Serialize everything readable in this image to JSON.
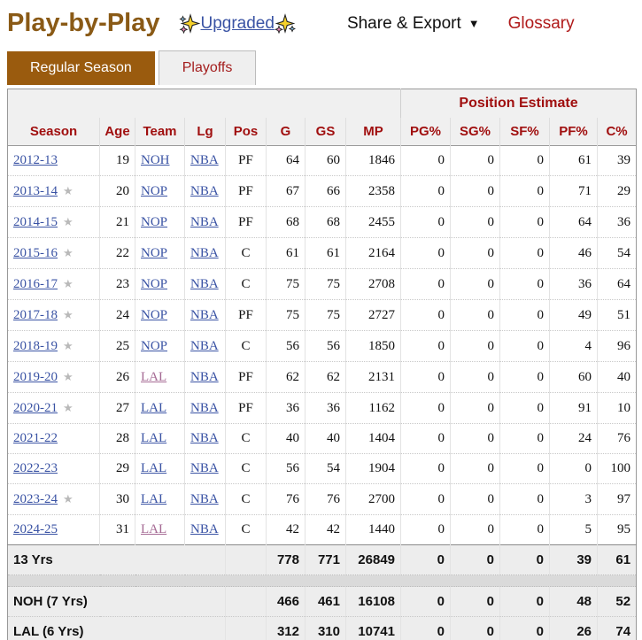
{
  "header": {
    "title": "Play-by-Play",
    "upgraded_label": "Upgraded",
    "share_export_label": "Share & Export",
    "caret_icon": "▼",
    "glossary_label": "Glossary"
  },
  "tabs": [
    {
      "label": "Regular Season",
      "active": true
    },
    {
      "label": "Playoffs",
      "active": false
    }
  ],
  "icons": {
    "all_star": "★",
    "sparkles": "sparkles-emoji"
  },
  "colors": {
    "title_brown": "#8a5a16",
    "tab_active_bg": "#9a5b0e",
    "header_red": "#a00f0f",
    "glossary_red": "#b01a1a",
    "link_blue": "#3a53a4",
    "link_visited": "#a56a94",
    "star_gray": "#b9b9b9",
    "thead_bg": "#f0f0f0",
    "sum_row_bg": "#ededed",
    "spacer_bg": "#dadada"
  },
  "table": {
    "group_header": "Position Estimate",
    "columns": [
      "Season",
      "Age",
      "Team",
      "Lg",
      "Pos",
      "G",
      "GS",
      "MP",
      "PG%",
      "SG%",
      "SF%",
      "PF%",
      "C%"
    ],
    "rows": [
      {
        "season": "2012-13",
        "star": false,
        "age": 19,
        "team": "NOH",
        "team_visited": false,
        "lg": "NBA",
        "pos": "PF",
        "g": 64,
        "gs": 60,
        "mp": 1846,
        "pg": 0,
        "sg": 0,
        "sf": 0,
        "pf": 61,
        "c": 39
      },
      {
        "season": "2013-14",
        "star": true,
        "age": 20,
        "team": "NOP",
        "team_visited": false,
        "lg": "NBA",
        "pos": "PF",
        "g": 67,
        "gs": 66,
        "mp": 2358,
        "pg": 0,
        "sg": 0,
        "sf": 0,
        "pf": 71,
        "c": 29
      },
      {
        "season": "2014-15",
        "star": true,
        "age": 21,
        "team": "NOP",
        "team_visited": false,
        "lg": "NBA",
        "pos": "PF",
        "g": 68,
        "gs": 68,
        "mp": 2455,
        "pg": 0,
        "sg": 0,
        "sf": 0,
        "pf": 64,
        "c": 36
      },
      {
        "season": "2015-16",
        "star": true,
        "age": 22,
        "team": "NOP",
        "team_visited": false,
        "lg": "NBA",
        "pos": "C",
        "g": 61,
        "gs": 61,
        "mp": 2164,
        "pg": 0,
        "sg": 0,
        "sf": 0,
        "pf": 46,
        "c": 54
      },
      {
        "season": "2016-17",
        "star": true,
        "age": 23,
        "team": "NOP",
        "team_visited": false,
        "lg": "NBA",
        "pos": "C",
        "g": 75,
        "gs": 75,
        "mp": 2708,
        "pg": 0,
        "sg": 0,
        "sf": 0,
        "pf": 36,
        "c": 64
      },
      {
        "season": "2017-18",
        "star": true,
        "age": 24,
        "team": "NOP",
        "team_visited": false,
        "lg": "NBA",
        "pos": "PF",
        "g": 75,
        "gs": 75,
        "mp": 2727,
        "pg": 0,
        "sg": 0,
        "sf": 0,
        "pf": 49,
        "c": 51
      },
      {
        "season": "2018-19",
        "star": true,
        "age": 25,
        "team": "NOP",
        "team_visited": false,
        "lg": "NBA",
        "pos": "C",
        "g": 56,
        "gs": 56,
        "mp": 1850,
        "pg": 0,
        "sg": 0,
        "sf": 0,
        "pf": 4,
        "c": 96
      },
      {
        "season": "2019-20",
        "star": true,
        "age": 26,
        "team": "LAL",
        "team_visited": true,
        "lg": "NBA",
        "pos": "PF",
        "g": 62,
        "gs": 62,
        "mp": 2131,
        "pg": 0,
        "sg": 0,
        "sf": 0,
        "pf": 60,
        "c": 40
      },
      {
        "season": "2020-21",
        "star": true,
        "age": 27,
        "team": "LAL",
        "team_visited": false,
        "lg": "NBA",
        "pos": "PF",
        "g": 36,
        "gs": 36,
        "mp": 1162,
        "pg": 0,
        "sg": 0,
        "sf": 0,
        "pf": 91,
        "c": 10
      },
      {
        "season": "2021-22",
        "star": false,
        "age": 28,
        "team": "LAL",
        "team_visited": false,
        "lg": "NBA",
        "pos": "C",
        "g": 40,
        "gs": 40,
        "mp": 1404,
        "pg": 0,
        "sg": 0,
        "sf": 0,
        "pf": 24,
        "c": 76
      },
      {
        "season": "2022-23",
        "star": false,
        "age": 29,
        "team": "LAL",
        "team_visited": false,
        "lg": "NBA",
        "pos": "C",
        "g": 56,
        "gs": 54,
        "mp": 1904,
        "pg": 0,
        "sg": 0,
        "sf": 0,
        "pf": 0,
        "c": 100
      },
      {
        "season": "2023-24",
        "star": true,
        "age": 30,
        "team": "LAL",
        "team_visited": false,
        "lg": "NBA",
        "pos": "C",
        "g": 76,
        "gs": 76,
        "mp": 2700,
        "pg": 0,
        "sg": 0,
        "sf": 0,
        "pf": 3,
        "c": 97
      },
      {
        "season": "2024-25",
        "star": false,
        "age": 31,
        "team": "LAL",
        "team_visited": true,
        "lg": "NBA",
        "pos": "C",
        "g": 42,
        "gs": 42,
        "mp": 1440,
        "pg": 0,
        "sg": 0,
        "sf": 0,
        "pf": 5,
        "c": 95
      }
    ],
    "career": {
      "label": "13 Yrs",
      "g": 778,
      "gs": 771,
      "mp": 26849,
      "pg": 0,
      "sg": 0,
      "sf": 0,
      "pf": 39,
      "c": 61
    },
    "team_totals": [
      {
        "label": "NOH (7 Yrs)",
        "g": 466,
        "gs": 461,
        "mp": 16108,
        "pg": 0,
        "sg": 0,
        "sf": 0,
        "pf": 48,
        "c": 52
      },
      {
        "label": "LAL (6 Yrs)",
        "g": 312,
        "gs": 310,
        "mp": 10741,
        "pg": 0,
        "sg": 0,
        "sf": 0,
        "pf": 26,
        "c": 74
      }
    ]
  }
}
